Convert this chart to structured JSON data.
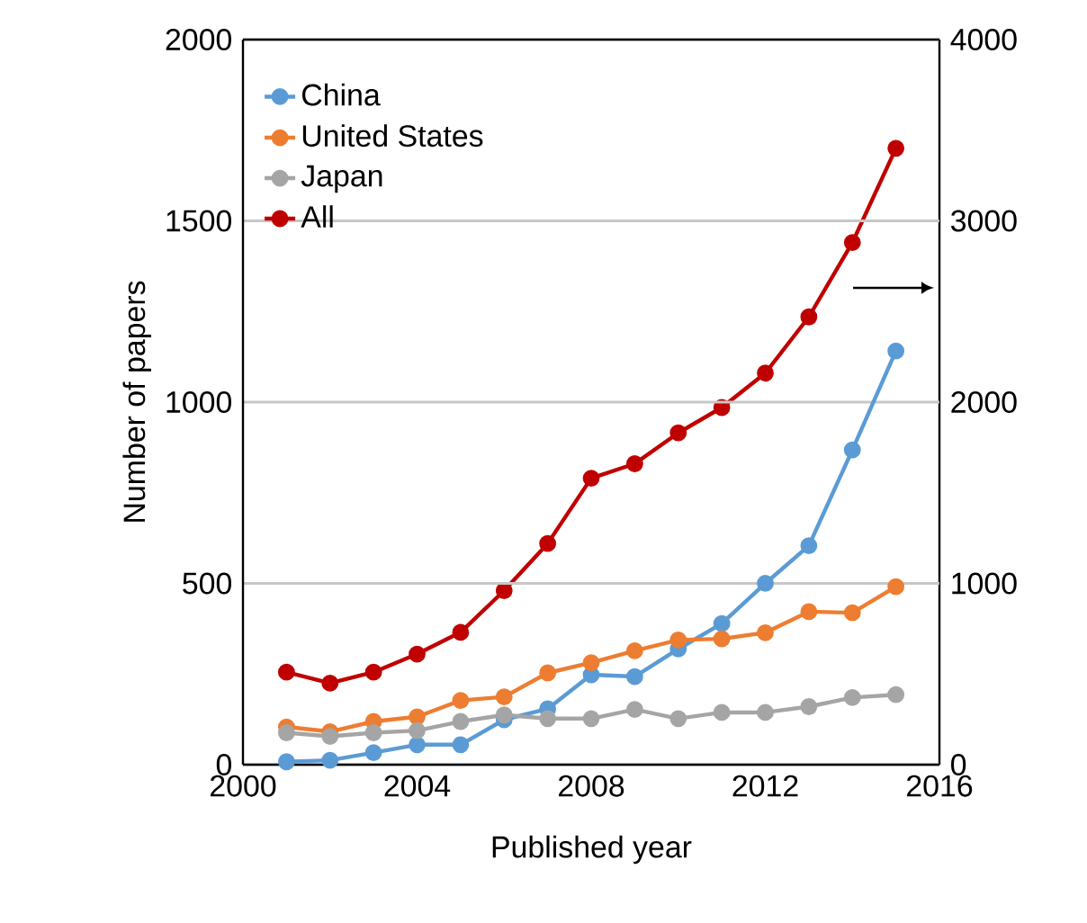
{
  "chart_data": {
    "type": "line",
    "xlabel": "Published year",
    "ylabel": "Number of papers",
    "x": [
      2001,
      2002,
      2003,
      2004,
      2005,
      2006,
      2007,
      2008,
      2009,
      2010,
      2011,
      2012,
      2013,
      2014,
      2015
    ],
    "series": [
      {
        "name": "China",
        "color": "#5b9bd5",
        "values": [
          8,
          12,
          33,
          55,
          55,
          124,
          154,
          248,
          243,
          319,
          389,
          500,
          604,
          868,
          1141
        ]
      },
      {
        "name": "United States",
        "color": "#ed7d31",
        "values": [
          104,
          91,
          119,
          132,
          177,
          187,
          253,
          281,
          314,
          344,
          347,
          364,
          422,
          419,
          491
        ]
      },
      {
        "name": "Japan",
        "color": "#a5a5a5",
        "values": [
          88,
          78,
          88,
          94,
          119,
          137,
          127,
          127,
          152,
          127,
          144,
          144,
          160,
          185,
          193
        ]
      },
      {
        "name": "All",
        "color": "#c00000",
        "axis": "y2",
        "values": [
          510,
          450,
          510,
          610,
          730,
          960,
          1220,
          1580,
          1660,
          1830,
          1970,
          2160,
          2470,
          2880,
          3400
        ]
      }
    ],
    "xlim": [
      2000,
      2016
    ],
    "xticks": [
      2000,
      2004,
      2008,
      2012,
      2016
    ],
    "ylim": [
      0,
      2000
    ],
    "yticks": [
      0,
      500,
      1000,
      1500,
      2000
    ],
    "y2lim": [
      0,
      4000
    ],
    "y2ticks": [
      0,
      1000,
      2000,
      3000,
      4000
    ],
    "grid": "y",
    "legend": "top left",
    "marker": "circle",
    "line_style": "solid"
  }
}
